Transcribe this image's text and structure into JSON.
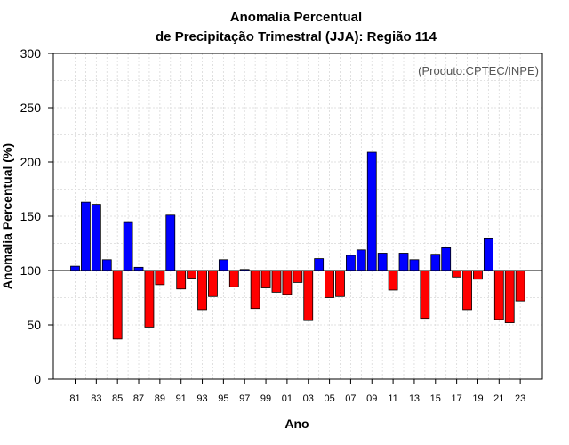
{
  "chart_data": {
    "type": "bar",
    "title_line1": "Anomalia Percentual",
    "title_line2": "de Precipitação Trimestral (JJA): Região 114",
    "xlabel": "Ano",
    "ylabel": "Anomalia Percentual (%)",
    "annotation": "(Produto:CPTEC/INPE)",
    "baseline": 100,
    "ylim": [
      0,
      300
    ],
    "yticks": [
      0,
      50,
      100,
      150,
      200,
      250,
      300
    ],
    "categories": [
      "81",
      "82",
      "83",
      "84",
      "85",
      "86",
      "87",
      "88",
      "89",
      "90",
      "91",
      "92",
      "93",
      "94",
      "95",
      "96",
      "97",
      "98",
      "99",
      "00",
      "01",
      "02",
      "03",
      "04",
      "05",
      "06",
      "07",
      "08",
      "09",
      "10",
      "11",
      "12",
      "13",
      "14",
      "15",
      "16",
      "17",
      "18",
      "19",
      "20",
      "21",
      "22",
      "23"
    ],
    "tick_labels": [
      "81",
      "83",
      "85",
      "87",
      "89",
      "91",
      "93",
      "95",
      "97",
      "99",
      "01",
      "03",
      "05",
      "07",
      "09",
      "11",
      "13",
      "15",
      "17",
      "19",
      "21",
      "23"
    ],
    "values": [
      104,
      163,
      161,
      110,
      37,
      145,
      103,
      48,
      87,
      151,
      83,
      93,
      64,
      76,
      110,
      85,
      101,
      65,
      84,
      80,
      78,
      89,
      54,
      111,
      75,
      76,
      114,
      119,
      209,
      116,
      82,
      116,
      110,
      56,
      115,
      121,
      94,
      64,
      92,
      130,
      55,
      52,
      72
    ],
    "colors": {
      "above": "#0000ff",
      "below": "#ff0000",
      "grid": "#d9d9d9",
      "axis": "#000000"
    },
    "grid": true
  }
}
